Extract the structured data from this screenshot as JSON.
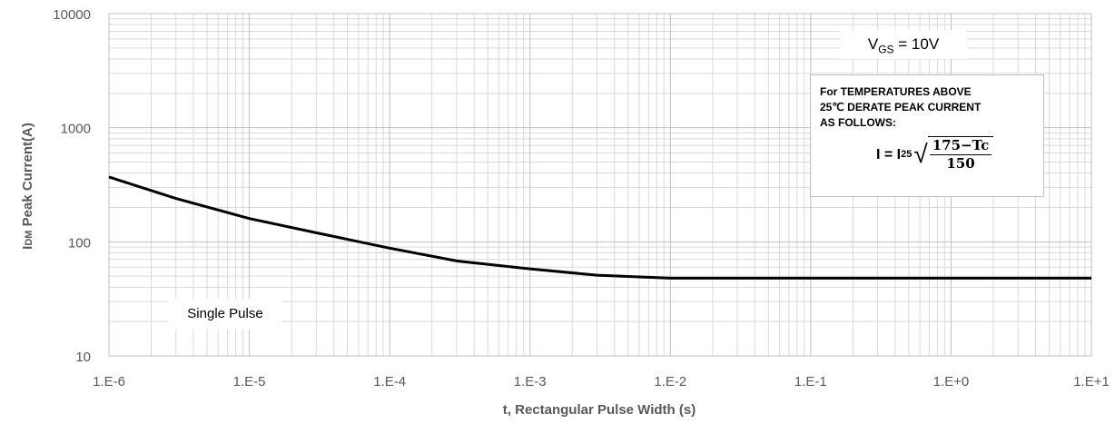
{
  "chart": {
    "y_axis_title": "IDM Peak Current(A)",
    "y_axis_title_main": "I",
    "y_axis_title_sub": "DM",
    "y_axis_title_rest": " Peak Current(A)",
    "x_axis_title": "t, Rectangular Pulse Width (s)",
    "y_ticks": [
      "10",
      "100",
      "1000",
      "10000"
    ],
    "x_ticks": [
      "1.E-6",
      "1.E-5",
      "1.E-4",
      "1.E-3",
      "1.E-2",
      "1.E-1",
      "1.E+0",
      "1.E+1"
    ]
  },
  "annotations": {
    "vgs_label": "V",
    "vgs_sub": "GS",
    "vgs_value": " = 10V",
    "derate_line1": "For TEMPERATURES ABOVE",
    "derate_line2": "25℃ DERATE PEAK CURRENT",
    "derate_line3": "AS FOLLOWS:",
    "formula_lhs": "I = I",
    "formula_sub": "25",
    "formula_num": "175−Tc",
    "formula_den": "150",
    "single_pulse": "Single Pulse"
  },
  "colors": {
    "curve": "#000000",
    "grid_major": "#bfbfbf",
    "grid_minor": "#d9d9d9",
    "tick_text": "#595959"
  },
  "chart_data": {
    "type": "line",
    "title": "",
    "xlabel": "t, Rectangular Pulse Width (s)",
    "ylabel": "IDM Peak Current(A)",
    "x_scale": "log",
    "y_scale": "log",
    "xlim": [
      1e-06,
      10
    ],
    "ylim": [
      10,
      10000
    ],
    "grid": true,
    "x_tick_labels": [
      "1.E-6",
      "1.E-5",
      "1.E-4",
      "1.E-3",
      "1.E-2",
      "1.E-1",
      "1.E+0",
      "1.E+1"
    ],
    "y_tick_labels": [
      "10",
      "100",
      "1000",
      "10000"
    ],
    "series": [
      {
        "name": "Single Pulse, VGS = 10V",
        "x": [
          1e-06,
          3e-06,
          1e-05,
          3e-05,
          0.0001,
          0.0003,
          0.001,
          0.003,
          0.01,
          0.1,
          1,
          10
        ],
        "y": [
          370,
          240,
          160,
          120,
          88,
          68,
          58,
          51,
          48,
          48,
          48,
          48
        ]
      }
    ],
    "annotations": [
      "VGS = 10V",
      "For TEMPERATURES ABOVE 25℃ DERATE PEAK CURRENT AS FOLLOWS: I = I25 * sqrt((175-Tc)/150)",
      "Single Pulse"
    ]
  }
}
